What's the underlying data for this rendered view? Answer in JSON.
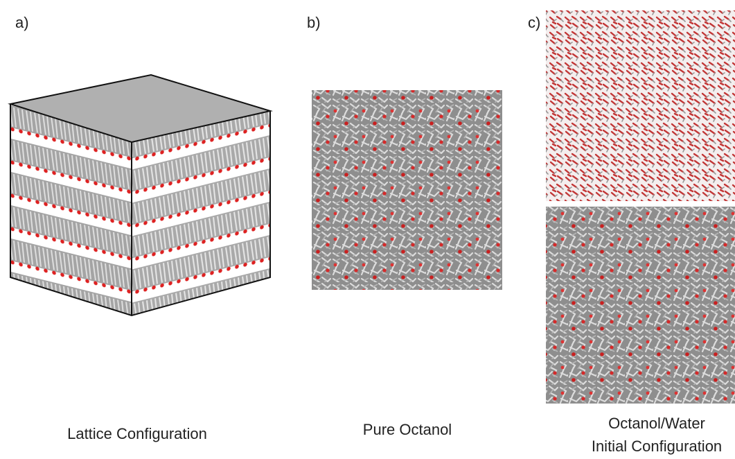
{
  "panels": [
    {
      "label": "a)",
      "caption": [
        "Lattice Configuration"
      ]
    },
    {
      "label": "b)",
      "caption": [
        "Pure Octanol"
      ]
    },
    {
      "label": "c)",
      "caption": [
        "Octanol/Water",
        "Initial Configuration"
      ]
    }
  ]
}
